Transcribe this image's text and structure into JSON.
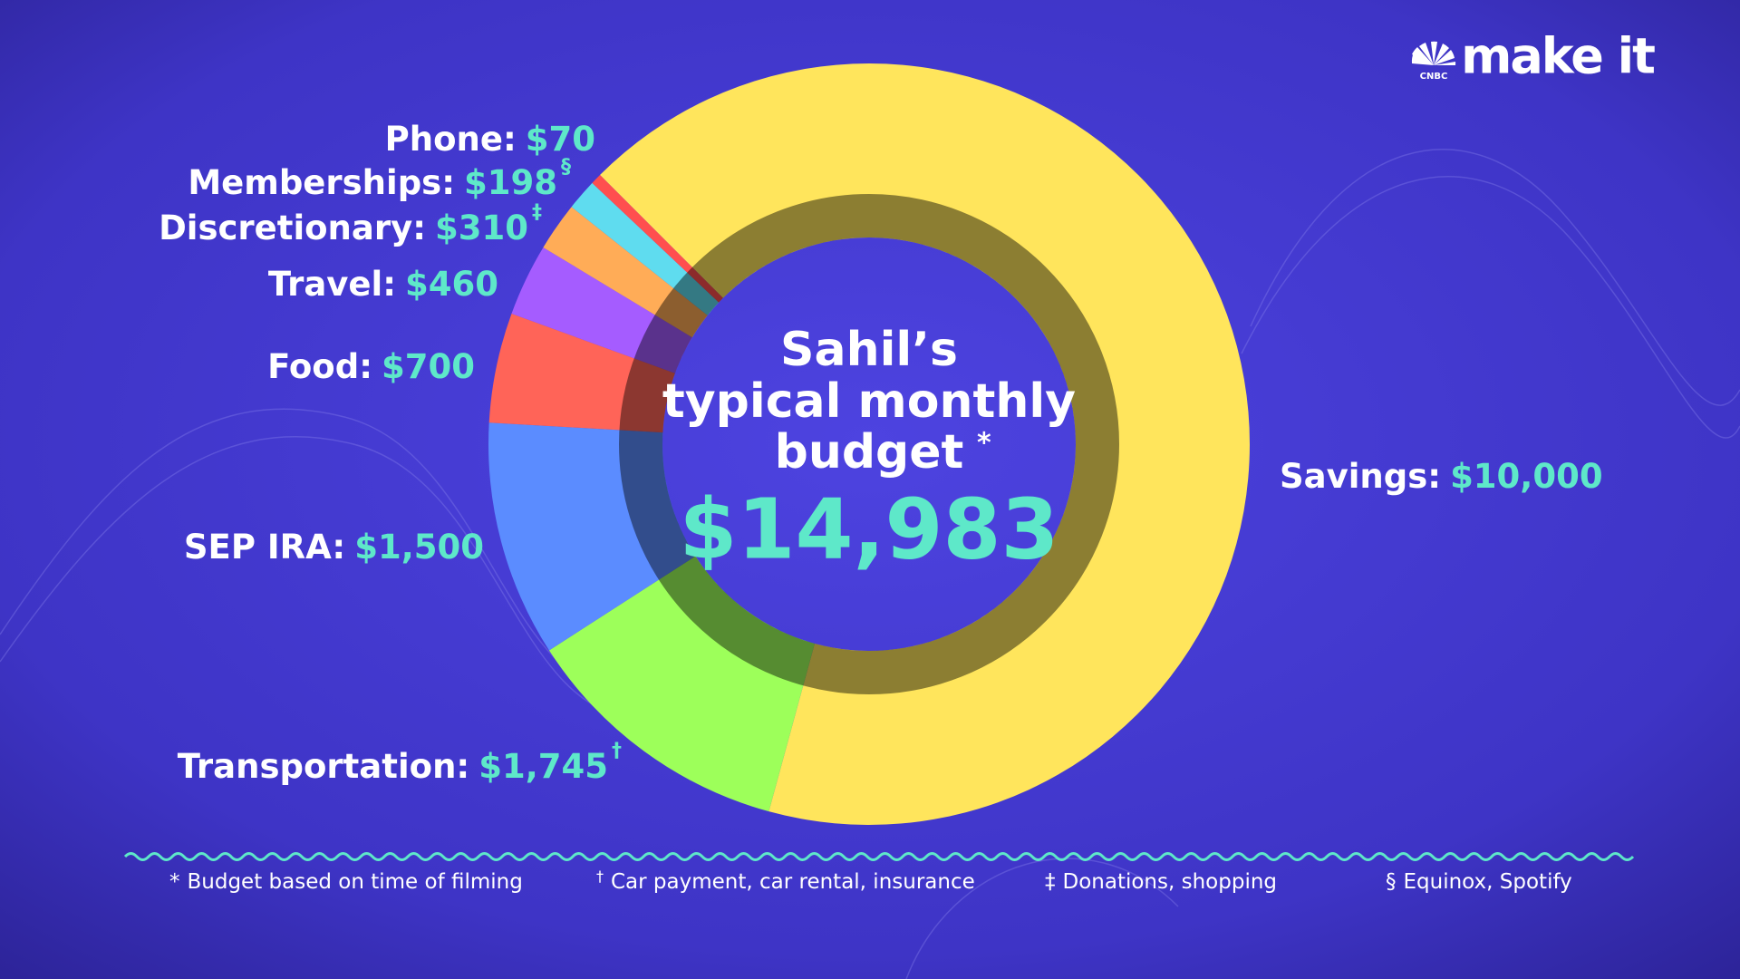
{
  "chart_data": {
    "type": "donut",
    "title": [
      "Sahil’s",
      "typical monthly",
      "budget"
    ],
    "title_mark": "*",
    "total_label": "$14,983",
    "categories": [
      "Savings:",
      "Transportation:",
      "SEP IRA:",
      "Food:",
      "Travel:",
      "Discretionary:",
      "Memberships:",
      "Phone:"
    ],
    "values": [
      10000,
      1745,
      1500,
      700,
      460,
      310,
      198,
      70
    ],
    "value_labels": [
      "$10,000",
      "$1,745",
      "$1,500",
      "$700",
      "$460",
      "$310",
      "$198",
      "$70"
    ],
    "colors": [
      "#ffe55c",
      "#9dff5a",
      "#5b8cff",
      "#ff6458",
      "#a55cff",
      "#ffac57",
      "#5fdcef",
      "#ff4f4f"
    ],
    "footnotes": [
      {
        "mark": "*",
        "text": "Budget based on time of filming"
      },
      {
        "mark": "†",
        "text": "Car payment, car rental, insurance"
      },
      {
        "mark": "‡",
        "text": "Donations, shopping"
      },
      {
        "mark": "§",
        "text": "Equinox, Spotify"
      }
    ]
  },
  "logo": {
    "brand": "CNBC",
    "name": "make it"
  }
}
